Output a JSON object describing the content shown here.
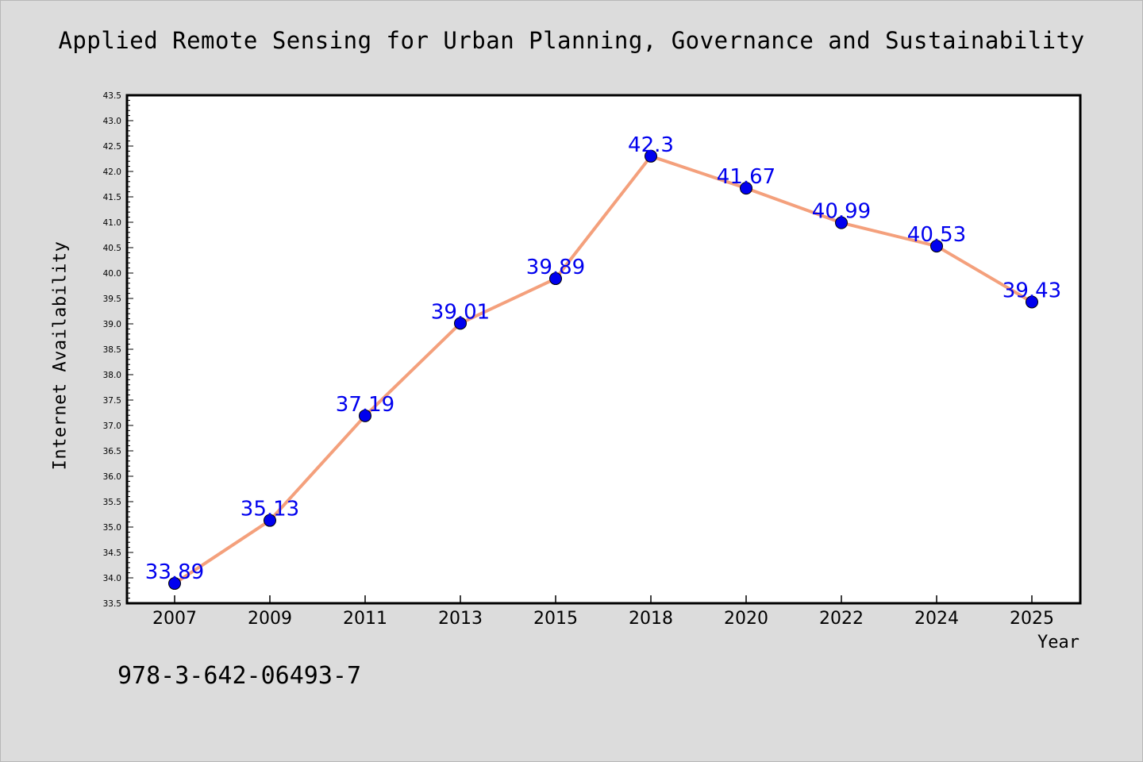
{
  "chart_data": {
    "type": "line",
    "title": "Applied Remote Sensing for Urban Planning, Governance and Sustainability",
    "xlabel": "Year",
    "ylabel": "Internet Availability",
    "categories": [
      "2007",
      "2009",
      "2011",
      "2013",
      "2015",
      "2018",
      "2020",
      "2022",
      "2024",
      "2025"
    ],
    "series": [
      {
        "values": [
          33.89,
          35.13,
          37.19,
          39.01,
          39.89,
          42.3,
          41.67,
          40.99,
          40.53,
          39.43
        ],
        "data_labels": [
          "33.89",
          "35.13",
          "37.19",
          "39.01",
          "39.89",
          "42.3",
          "41.67",
          "40.99",
          "40.53",
          "39.43"
        ]
      }
    ],
    "ylim": [
      33.5,
      43.5
    ],
    "y_ticks": [
      "33.5",
      "34.0",
      "34.5",
      "35.0",
      "35.5",
      "36.0",
      "36.5",
      "37.0",
      "37.5",
      "38.0",
      "38.5",
      "39.0",
      "39.5",
      "40.0",
      "40.5",
      "41.0",
      "41.5",
      "42.0",
      "42.5",
      "43.0",
      "43.5"
    ],
    "grid": false,
    "legend": "none",
    "colors": {
      "line": "#f4a07c",
      "marker": "#0000ee",
      "data_label": "#0000ee",
      "plot_background": "#ffffff",
      "figure_background": "#dcdcdc"
    }
  },
  "footnote": "978-3-642-06493-7"
}
